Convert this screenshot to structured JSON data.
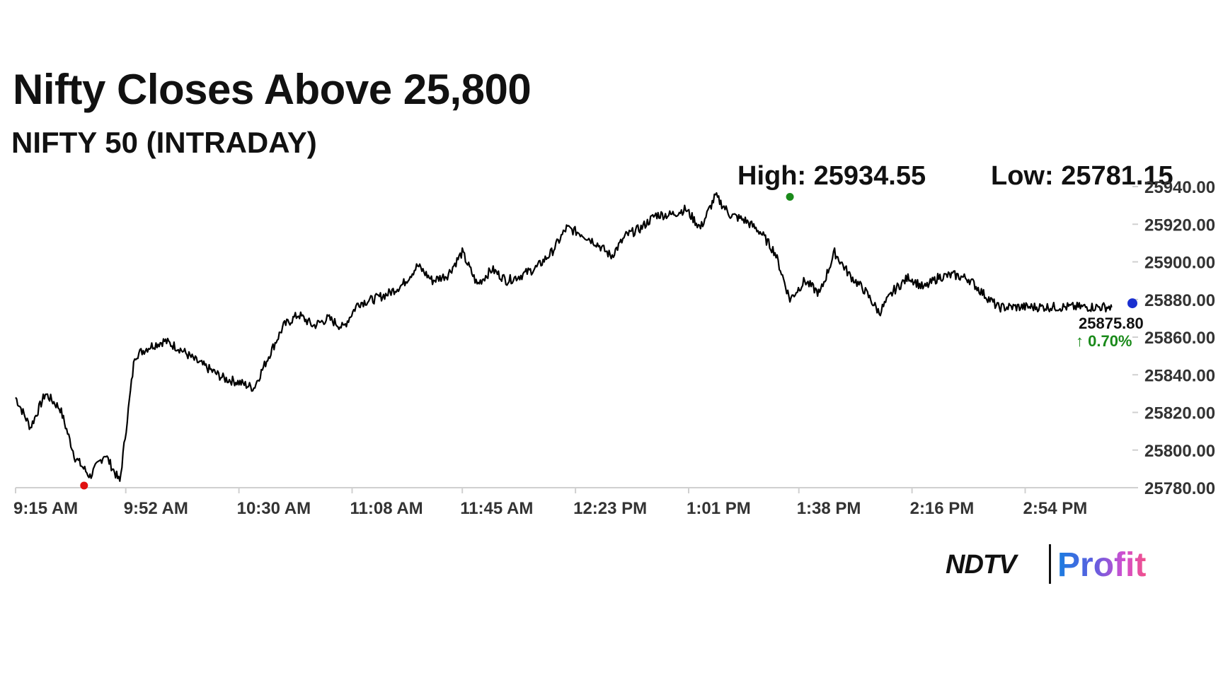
{
  "header": {
    "title": "Nifty Closes Above 25,800",
    "subtitle": "NIFTY 50 (INTRADAY)",
    "high_text": "High: 25934.55",
    "low_text": "Low: 25781.15"
  },
  "branding": {
    "ndtv": "NDTV",
    "profit": "Profit"
  },
  "colors": {
    "line": "#000000",
    "high_marker": "#1a8a1a",
    "low_marker": "#e01010",
    "last_marker": "#1a2fd0",
    "change_up": "#1a8a1a",
    "axis": "#d0d0d0"
  },
  "chart_data": {
    "type": "line",
    "series": [
      {
        "x": [
          "9:15 AM",
          "9:20 AM",
          "9:25 AM",
          "9:30 AM",
          "9:35 AM",
          "9:40 AM",
          "9:45 AM",
          "9:50 AM",
          "9:55 AM",
          "10:00 AM",
          "10:05 AM",
          "10:10 AM",
          "10:15 AM",
          "10:20 AM",
          "10:25 AM",
          "10:30 AM",
          "10:35 AM",
          "10:40 AM",
          "10:45 AM",
          "10:50 AM",
          "10:55 AM",
          "11:00 AM",
          "11:05 AM",
          "11:10 AM",
          "11:15 AM",
          "11:20 AM",
          "11:25 AM",
          "11:30 AM",
          "11:35 AM",
          "11:40 AM",
          "11:45 AM",
          "11:50 AM",
          "11:55 AM",
          "12:00 PM",
          "12:05 PM",
          "12:10 PM",
          "12:15 PM",
          "12:20 PM",
          "12:25 PM",
          "12:30 PM",
          "12:35 PM",
          "12:40 PM",
          "12:45 PM",
          "12:50 PM",
          "12:55 PM",
          "1:00 PM",
          "1:05 PM",
          "1:10 PM",
          "1:15 PM",
          "1:20 PM",
          "1:25 PM",
          "1:30 PM",
          "1:35 PM",
          "1:40 PM",
          "1:45 PM",
          "1:50 PM",
          "1:55 PM",
          "2:00 PM",
          "2:05 PM",
          "2:10 PM",
          "2:15 PM",
          "2:20 PM",
          "2:25 PM",
          "2:30 PM",
          "2:35 PM",
          "2:40 PM",
          "2:45 PM",
          "2:50 PM",
          "2:55 PM",
          "3:00 PM",
          "3:05 PM",
          "3:10 PM",
          "3:15 PM",
          "3:20 PM",
          "3:25 PM",
          "3:30 PM"
        ],
        "values": [
          25828,
          25812,
          25830,
          25822,
          25796,
          25786,
          25798,
          25783,
          25850,
          25855,
          25858,
          25854,
          25848,
          25843,
          25838,
          25836,
          25833,
          25850,
          25866,
          25872,
          25866,
          25870,
          25865,
          25878,
          25880,
          25883,
          25888,
          25898,
          25890,
          25893,
          25905,
          25888,
          25896,
          25890,
          25893,
          25897,
          25905,
          25918,
          25915,
          25910,
          25903,
          25914,
          25918,
          25925,
          25925,
          25928,
          25918,
          25935,
          25925,
          25922,
          25916,
          25905,
          25880,
          25890,
          25883,
          25905,
          25893,
          25885,
          25873,
          25885,
          25892,
          25886,
          25892,
          25893,
          25891,
          25883,
          25875.8,
          25876,
          25876,
          25876,
          25876,
          25876,
          25876,
          25876,
          25876,
          25876
        ],
        "name": ""
      }
    ],
    "x_tick_labels": [
      "9:15 AM",
      "9:52 AM",
      "10:30 AM",
      "11:08 AM",
      "11:45 AM",
      "12:23 PM",
      "1:01 PM",
      "1:38 PM",
      "2:16 PM",
      "2:54 PM"
    ],
    "y_tick_labels": [
      "25940.00",
      "25920.00",
      "25900.00",
      "25880.00",
      "25860.00",
      "25840.00",
      "25820.00",
      "25800.00",
      "25780.00"
    ],
    "ylim": [
      25780,
      25940
    ],
    "high": 25934.55,
    "low": 25781.15,
    "last_value": "25875.80",
    "change_text": "0.70%",
    "grid": false,
    "y_axis_side": "right",
    "xlabel": "",
    "ylabel": "",
    "title": "Nifty Closes Above 25,800"
  }
}
